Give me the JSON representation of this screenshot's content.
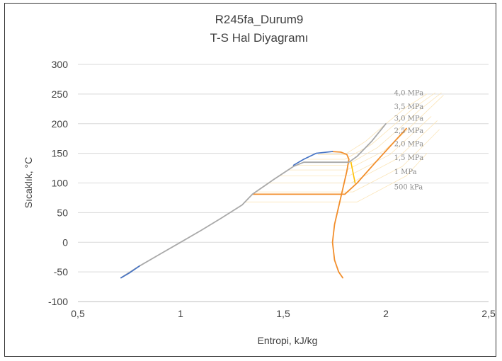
{
  "chart_data": {
    "type": "scatter",
    "title": "R245fa_Durum9",
    "subtitle": "T-S Hal Diyagramı",
    "xlabel": "Entropi, kJ/kg",
    "ylabel": "Sıcaklık, °C",
    "xlim": [
      0.5,
      2.5
    ],
    "ylim": [
      -100,
      300
    ],
    "xticks": [
      "0,5",
      "1",
      "1,5",
      "2",
      "2,5"
    ],
    "yticks": [
      "-100",
      "-50",
      "0",
      "50",
      "100",
      "150",
      "200",
      "250",
      "300"
    ],
    "grid": "horizontal",
    "legend": "none",
    "isobar_labels": [
      {
        "text": "4,0 MPa",
        "s": 2.04,
        "t": 248
      },
      {
        "text": "3,5 MPa",
        "s": 2.04,
        "t": 225
      },
      {
        "text": "3,0 MPa",
        "s": 2.04,
        "t": 205
      },
      {
        "text": "2,5 MPa",
        "s": 2.04,
        "t": 184
      },
      {
        "text": "2,0 MPa",
        "s": 2.04,
        "t": 162
      },
      {
        "text": "1,5 MPa",
        "s": 2.04,
        "t": 139
      },
      {
        "text": "1 MPa",
        "s": 2.04,
        "t": 115
      },
      {
        "text": "500 kPa",
        "s": 2.04,
        "t": 89
      }
    ],
    "series": [
      {
        "color": "#fbe5b8",
        "width": 0.8,
        "lines": [
          [
            [
              1.67,
              148
            ],
            [
              1.8,
              148
            ],
            [
              1.9,
              170
            ],
            [
              2.0,
              200
            ],
            [
              2.1,
              228
            ],
            [
              2.2,
              250
            ]
          ],
          [
            [
              1.62,
              140
            ],
            [
              1.8,
              140
            ],
            [
              1.93,
              165
            ],
            [
              2.03,
              195
            ],
            [
              2.13,
              225
            ],
            [
              2.24,
              252
            ]
          ],
          [
            [
              1.57,
              130
            ],
            [
              1.81,
              130
            ],
            [
              1.96,
              160
            ],
            [
              2.06,
              190
            ],
            [
              2.16,
              222
            ],
            [
              2.27,
              252
            ]
          ],
          [
            [
              1.52,
              122
            ],
            [
              1.81,
              122
            ],
            [
              1.99,
              154
            ],
            [
              2.09,
              185
            ],
            [
              2.19,
              218
            ],
            [
              2.28,
              248
            ]
          ],
          [
            [
              1.48,
              112
            ],
            [
              1.82,
              112
            ],
            [
              2.02,
              148
            ],
            [
              2.12,
              180
            ],
            [
              2.22,
              212
            ]
          ],
          [
            [
              1.42,
              100
            ],
            [
              1.83,
              100
            ],
            [
              2.05,
              140
            ],
            [
              2.15,
              172
            ],
            [
              2.25,
              205
            ]
          ],
          [
            [
              1.37,
              85
            ],
            [
              1.84,
              85
            ],
            [
              2.08,
              128
            ],
            [
              2.18,
              162
            ],
            [
              2.26,
              190
            ]
          ],
          [
            [
              1.31,
              68
            ],
            [
              1.86,
              68
            ],
            [
              2.1,
              112
            ],
            [
              2.2,
              150
            ]
          ]
        ]
      },
      {
        "name": "",
        "color": "#f28e2b",
        "width": 1.8,
        "lines": [
          [
            [
              1.35,
              81
            ],
            [
              1.8,
              81
            ],
            [
              1.86,
              100
            ],
            [
              1.95,
              135
            ],
            [
              2.1,
              192
            ]
          ],
          [
            [
              1.79,
              -60
            ],
            [
              1.77,
              -50
            ],
            [
              1.75,
              -30
            ],
            [
              1.74,
              0
            ],
            [
              1.75,
              30
            ],
            [
              1.77,
              60
            ],
            [
              1.79,
              90
            ],
            [
              1.81,
              120
            ],
            [
              1.82,
              140
            ],
            [
              1.81,
              148
            ],
            [
              1.78,
              152
            ],
            [
              1.74,
              153
            ]
          ]
        ]
      },
      {
        "name": "",
        "color": "#a9a9a9",
        "width": 1.8,
        "lines": [
          [
            [
              0.71,
              -60
            ],
            [
              0.8,
              -40
            ],
            [
              0.9,
              -20
            ],
            [
              1.0,
              0
            ],
            [
              1.1,
              20
            ],
            [
              1.2,
              41
            ],
            [
              1.3,
              63
            ],
            [
              1.35,
              81
            ],
            [
              1.45,
              105
            ],
            [
              1.55,
              128
            ],
            [
              1.6,
              135
            ],
            [
              1.82,
              135
            ],
            [
              1.86,
              145
            ],
            [
              1.93,
              170
            ],
            [
              2.0,
              200
            ]
          ]
        ]
      },
      {
        "name": "",
        "color": "#4472c4",
        "width": 1.6,
        "lines": [
          [
            [
              0.71,
              -60
            ],
            [
              0.75,
              -52
            ],
            [
              0.8,
              -40
            ]
          ],
          [
            [
              1.55,
              130
            ],
            [
              1.6,
              140
            ],
            [
              1.66,
              150
            ],
            [
              1.74,
              153
            ]
          ]
        ]
      },
      {
        "name": "",
        "color": "#ffc000",
        "width": 1.6,
        "lines": [
          [
            [
              1.83,
              135
            ],
            [
              1.85,
              100
            ]
          ]
        ]
      }
    ]
  }
}
